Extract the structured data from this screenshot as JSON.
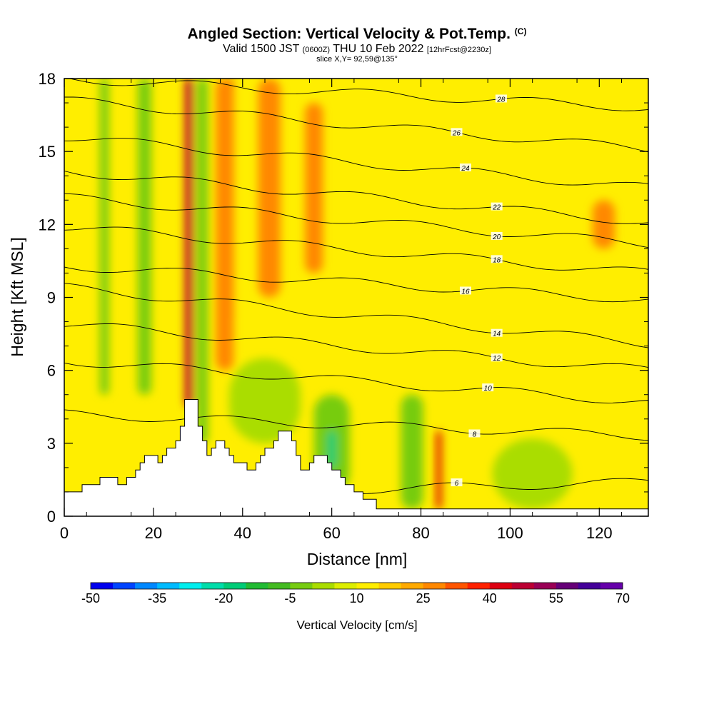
{
  "header": {
    "title": "Angled Section: Vertical Velocity & Pot.Temp.",
    "title_mark": "(C)",
    "valid_prefix": "Valid 1500 JST",
    "valid_zulu": "(0600Z)",
    "valid_date": "THU 10 Feb 2022",
    "forecast": "[12hrFcst@2230z]",
    "slice": "slice X,Y= 92,59@135°"
  },
  "chart_data": {
    "type": "heatmap",
    "xlabel": "Distance [nm]",
    "ylabel": "Height [Kft MSL]",
    "xlim": [
      0,
      131
    ],
    "ylim": [
      0,
      18
    ],
    "x_ticks": [
      "0",
      "20",
      "40",
      "60",
      "80",
      "100",
      "120"
    ],
    "y_ticks": [
      "0",
      "3",
      "6",
      "9",
      "12",
      "15",
      "18"
    ],
    "colorbar": {
      "label": "Vertical Velocity [cm/s]",
      "tick_labels": [
        "-50",
        "-35",
        "-20",
        "-5",
        "10",
        "25",
        "40",
        "55",
        "70"
      ],
      "min": -50,
      "max": 70,
      "step": 5,
      "colors": [
        "#0000ee",
        "#0044ff",
        "#0088ff",
        "#00bbff",
        "#00eeee",
        "#00ddaa",
        "#00cc77",
        "#22bb33",
        "#44bb22",
        "#77cc11",
        "#aadd00",
        "#ddee00",
        "#ffee00",
        "#ffcc00",
        "#ffaa00",
        "#ff8800",
        "#ff5500",
        "#ff2200",
        "#dd0011",
        "#bb0033",
        "#990055",
        "#660077",
        "#440099",
        "#6600aa"
      ]
    },
    "terrain": [
      [
        0,
        1
      ],
      [
        4,
        1
      ],
      [
        4,
        1.3
      ],
      [
        8,
        1.3
      ],
      [
        8,
        1.6
      ],
      [
        12,
        1.6
      ],
      [
        12,
        1.3
      ],
      [
        14,
        1.3
      ],
      [
        14,
        1.6
      ],
      [
        16,
        1.6
      ],
      [
        16,
        1.9
      ],
      [
        17,
        1.9
      ],
      [
        17,
        2.2
      ],
      [
        18,
        2.2
      ],
      [
        18,
        2.5
      ],
      [
        21,
        2.5
      ],
      [
        21,
        2.2
      ],
      [
        22,
        2.2
      ],
      [
        22,
        2.5
      ],
      [
        23,
        2.5
      ],
      [
        23,
        2.8
      ],
      [
        25,
        2.8
      ],
      [
        25,
        3.1
      ],
      [
        26,
        3.1
      ],
      [
        26,
        3.7
      ],
      [
        27,
        3.7
      ],
      [
        27,
        4.8
      ],
      [
        30,
        4.8
      ],
      [
        30,
        3.7
      ],
      [
        31,
        3.7
      ],
      [
        31,
        3.1
      ],
      [
        32,
        3.1
      ],
      [
        32,
        2.5
      ],
      [
        33,
        2.5
      ],
      [
        33,
        2.8
      ],
      [
        34,
        2.8
      ],
      [
        34,
        3.1
      ],
      [
        36,
        3.1
      ],
      [
        36,
        2.8
      ],
      [
        37,
        2.8
      ],
      [
        37,
        2.5
      ],
      [
        38,
        2.5
      ],
      [
        38,
        2.2
      ],
      [
        41,
        2.2
      ],
      [
        41,
        1.9
      ],
      [
        43,
        1.9
      ],
      [
        43,
        2.2
      ],
      [
        44,
        2.2
      ],
      [
        44,
        2.5
      ],
      [
        45,
        2.5
      ],
      [
        45,
        2.8
      ],
      [
        47,
        2.8
      ],
      [
        47,
        3.1
      ],
      [
        48,
        3.1
      ],
      [
        48,
        3.5
      ],
      [
        51,
        3.5
      ],
      [
        51,
        3.1
      ],
      [
        52,
        3.1
      ],
      [
        52,
        2.5
      ],
      [
        53,
        2.5
      ],
      [
        53,
        1.9
      ],
      [
        55,
        1.9
      ],
      [
        55,
        2.2
      ],
      [
        56,
        2.2
      ],
      [
        56,
        2.5
      ],
      [
        59,
        2.5
      ],
      [
        59,
        2.2
      ],
      [
        60,
        2.2
      ],
      [
        60,
        1.9
      ],
      [
        62,
        1.9
      ],
      [
        62,
        1.6
      ],
      [
        63,
        1.6
      ],
      [
        63,
        1.3
      ],
      [
        65,
        1.3
      ],
      [
        65,
        1
      ],
      [
        67,
        1
      ],
      [
        67,
        0.7
      ],
      [
        70,
        0.7
      ],
      [
        70,
        0.3
      ],
      [
        131,
        0.3
      ],
      [
        131,
        0
      ],
      [
        0,
        0
      ]
    ],
    "theta_contours": [
      {
        "value": 6,
        "y_left": 0.8,
        "y_right": 1.4,
        "label_x": 88
      },
      {
        "value": 8,
        "y_left": 4.2,
        "y_right": 3.3,
        "label_x": 92
      },
      {
        "value": 10,
        "y_left": 6.4,
        "y_right": 4.7,
        "label_x": 95
      },
      {
        "value": 12,
        "y_left": 7.9,
        "y_right": 6.0,
        "label_x": 97
      },
      {
        "value": 14,
        "y_left": 9.4,
        "y_right": 7.1,
        "label_x": 97
      },
      {
        "value": 16,
        "y_left": 10.3,
        "y_right": 8.9,
        "label_x": 90
      },
      {
        "value": 18,
        "y_left": 11.9,
        "y_right": 10.0,
        "label_x": 97
      },
      {
        "value": 20,
        "y_left": 13.1,
        "y_right": 11.2,
        "label_x": 97
      },
      {
        "value": 22,
        "y_left": 14.2,
        "y_right": 12.1,
        "label_x": 97
      },
      {
        "value": 24,
        "y_left": 15.6,
        "y_right": 13.5,
        "label_x": 90
      },
      {
        "value": 26,
        "y_left": 17.1,
        "y_right": 15.1,
        "label_x": 88
      },
      {
        "value": 28,
        "y_left": 18.0,
        "y_right": 16.8,
        "label_x": 98
      }
    ],
    "velocity_field": {
      "background_value": 12,
      "features": [
        {
          "x": 28,
          "w": 1.8,
          "y0": 4.5,
          "y1": 18,
          "value": 45
        },
        {
          "x": 37,
          "w": 2.0,
          "y0": 8,
          "y1": 18,
          "value": 42
        },
        {
          "x": 36,
          "w": 4.0,
          "y0": 6,
          "y1": 18,
          "value": 25
        },
        {
          "x": 46,
          "w": 5.0,
          "y0": 9,
          "y1": 18,
          "value": 25
        },
        {
          "x": 56,
          "w": 4.0,
          "y0": 10,
          "y1": 17,
          "value": 25
        },
        {
          "x": 84,
          "w": 1.2,
          "y0": 0.3,
          "y1": 3.5,
          "value": 40
        },
        {
          "x": 121,
          "w": 5.0,
          "y0": 11,
          "y1": 13,
          "value": 25
        },
        {
          "x": 18,
          "w": 3.0,
          "y0": 5,
          "y1": 18,
          "value": -5
        },
        {
          "x": 31,
          "w": 2.5,
          "y0": 3,
          "y1": 18,
          "value": -5
        },
        {
          "x": 9,
          "w": 2.0,
          "y0": 5,
          "y1": 18,
          "value": -5
        },
        {
          "x": 60,
          "w": 8.0,
          "y0": 1,
          "y1": 5,
          "value": -5
        },
        {
          "x": 60,
          "w": 2.0,
          "y0": 2,
          "y1": 3.5,
          "value": -20
        },
        {
          "x": 78,
          "w": 5.0,
          "y0": 0.3,
          "y1": 5,
          "value": -5
        },
        {
          "x": 105,
          "w": 18.0,
          "y0": 0.3,
          "y1": 3.2,
          "value": 0
        },
        {
          "x": 45,
          "w": 16.0,
          "y0": 3,
          "y1": 6.5,
          "value": 0
        }
      ]
    }
  }
}
